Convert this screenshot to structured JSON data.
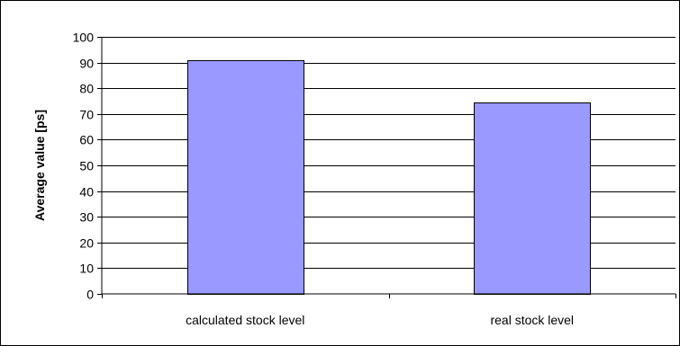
{
  "chart_data": {
    "type": "bar",
    "categories": [
      "calculated stock level",
      "real stock level"
    ],
    "values": [
      91,
      74.5
    ],
    "title": "",
    "xlabel": "",
    "ylabel": "Average value [ps]",
    "ylim": [
      0,
      100
    ],
    "yticks": [
      0,
      10,
      20,
      30,
      40,
      50,
      60,
      70,
      80,
      90,
      100
    ],
    "grid": true,
    "legend": "none",
    "colors": {
      "bar_fill": "#9999ff",
      "bar_stroke": "#000000",
      "grid": "#000000",
      "background": "#ffffff"
    }
  }
}
